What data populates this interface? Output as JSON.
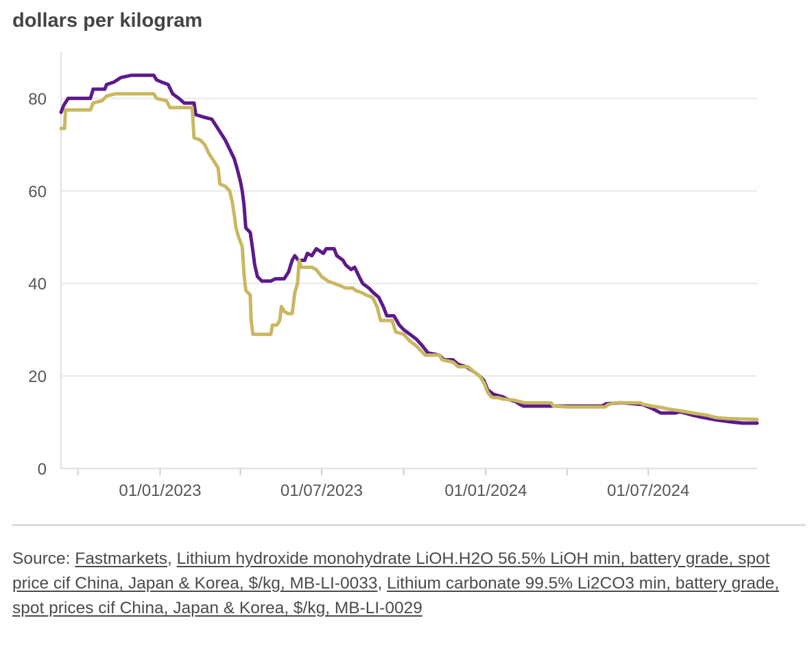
{
  "chart_data": {
    "type": "line",
    "ylabel": "dollars per kilogram",
    "ylim": [
      0,
      90
    ],
    "yticks": [
      0,
      20,
      40,
      60,
      80
    ],
    "xlim": [
      "2022-09-12",
      "2024-10-31"
    ],
    "xticks": [
      {
        "date": "2023-01-01",
        "label": "01/01/2023"
      },
      {
        "date": "2023-07-01",
        "label": "01/07/2023"
      },
      {
        "date": "2024-01-01",
        "label": "01/01/2024"
      },
      {
        "date": "2024-07-01",
        "label": "01/07/2024"
      }
    ],
    "minor_xticks": [
      "2022-10-01",
      "2023-04-01",
      "2023-10-01",
      "2024-04-01"
    ],
    "grid": true,
    "series": [
      {
        "color": "#5c1a8c",
        "points": [
          [
            "2022-09-12",
            77
          ],
          [
            "2022-09-15",
            78.5
          ],
          [
            "2022-09-20",
            80
          ],
          [
            "2022-10-15",
            80
          ],
          [
            "2022-10-18",
            82
          ],
          [
            "2022-10-31",
            82
          ],
          [
            "2022-11-02",
            83
          ],
          [
            "2022-11-10",
            83.5
          ],
          [
            "2022-11-18",
            84.5
          ],
          [
            "2022-11-30",
            85
          ],
          [
            "2022-12-25",
            85
          ],
          [
            "2022-12-28",
            84
          ],
          [
            "2023-01-03",
            83.5
          ],
          [
            "2023-01-10",
            83
          ],
          [
            "2023-01-15",
            81
          ],
          [
            "2023-01-22",
            80
          ],
          [
            "2023-01-28",
            79
          ],
          [
            "2023-02-08",
            79
          ],
          [
            "2023-02-10",
            76.5
          ],
          [
            "2023-02-18",
            76
          ],
          [
            "2023-02-28",
            75.5
          ],
          [
            "2023-03-05",
            74
          ],
          [
            "2023-03-10",
            72.5
          ],
          [
            "2023-03-15",
            71
          ],
          [
            "2023-03-20",
            69
          ],
          [
            "2023-03-25",
            67
          ],
          [
            "2023-03-28",
            65
          ],
          [
            "2023-04-01",
            62
          ],
          [
            "2023-04-03",
            60
          ],
          [
            "2023-04-05",
            57
          ],
          [
            "2023-04-07",
            52
          ],
          [
            "2023-04-12",
            51
          ],
          [
            "2023-04-15",
            47
          ],
          [
            "2023-04-17",
            44
          ],
          [
            "2023-04-20",
            41.5
          ],
          [
            "2023-04-25",
            40.5
          ],
          [
            "2023-05-05",
            40.5
          ],
          [
            "2023-05-10",
            41
          ],
          [
            "2023-05-20",
            41
          ],
          [
            "2023-05-25",
            42.5
          ],
          [
            "2023-05-29",
            45
          ],
          [
            "2023-06-01",
            46
          ],
          [
            "2023-06-05",
            45
          ],
          [
            "2023-06-12",
            45
          ],
          [
            "2023-06-15",
            46.5
          ],
          [
            "2023-06-20",
            46
          ],
          [
            "2023-06-25",
            47.5
          ],
          [
            "2023-07-03",
            46.5
          ],
          [
            "2023-07-06",
            47.5
          ],
          [
            "2023-07-15",
            47.5
          ],
          [
            "2023-07-18",
            46
          ],
          [
            "2023-07-25",
            45
          ],
          [
            "2023-07-28",
            44
          ],
          [
            "2023-08-03",
            43
          ],
          [
            "2023-08-07",
            43.5
          ],
          [
            "2023-08-12",
            41.5
          ],
          [
            "2023-08-16",
            40
          ],
          [
            "2023-08-23",
            39
          ],
          [
            "2023-08-28",
            38
          ],
          [
            "2023-09-03",
            37
          ],
          [
            "2023-09-08",
            35
          ],
          [
            "2023-09-12",
            33
          ],
          [
            "2023-09-20",
            33
          ],
          [
            "2023-09-26",
            31
          ],
          [
            "2023-10-01",
            30
          ],
          [
            "2023-10-08",
            29
          ],
          [
            "2023-10-15",
            28
          ],
          [
            "2023-10-22",
            26.5
          ],
          [
            "2023-10-28",
            25
          ],
          [
            "2023-11-10",
            24.5
          ],
          [
            "2023-11-15",
            23.5
          ],
          [
            "2023-11-25",
            23.5
          ],
          [
            "2023-12-01",
            22.5
          ],
          [
            "2023-12-10",
            22
          ],
          [
            "2023-12-18",
            21
          ],
          [
            "2023-12-25",
            20
          ],
          [
            "2023-12-30",
            19
          ],
          [
            "2024-01-01",
            18
          ],
          [
            "2024-01-03",
            17
          ],
          [
            "2024-01-10",
            16
          ],
          [
            "2024-01-20",
            15.5
          ],
          [
            "2024-01-25",
            15
          ],
          [
            "2024-02-03",
            14.5
          ],
          [
            "2024-02-07",
            14
          ],
          [
            "2024-02-12",
            13.5
          ],
          [
            "2024-03-14",
            13.5
          ],
          [
            "2024-03-20",
            13.5
          ],
          [
            "2024-04-01",
            13.5
          ],
          [
            "2024-05-10",
            13.5
          ],
          [
            "2024-05-15",
            14
          ],
          [
            "2024-06-01",
            14.2
          ],
          [
            "2024-06-15",
            14
          ],
          [
            "2024-06-25",
            13.8
          ],
          [
            "2024-07-05",
            13
          ],
          [
            "2024-07-10",
            12.5
          ],
          [
            "2024-07-15",
            12
          ],
          [
            "2024-08-01",
            12
          ],
          [
            "2024-08-05",
            12.3
          ],
          [
            "2024-08-20",
            11.5
          ],
          [
            "2024-09-01",
            11
          ],
          [
            "2024-09-15",
            10.5
          ],
          [
            "2024-10-05",
            10
          ],
          [
            "2024-10-15",
            9.8
          ],
          [
            "2024-10-31",
            9.8
          ]
        ]
      },
      {
        "color": "#c9b861",
        "points": [
          [
            "2022-09-12",
            73.5
          ],
          [
            "2022-09-16",
            73.5
          ],
          [
            "2022-09-17",
            77.5
          ],
          [
            "2022-10-15",
            77.5
          ],
          [
            "2022-10-18",
            79
          ],
          [
            "2022-10-28",
            79.5
          ],
          [
            "2022-11-02",
            80.5
          ],
          [
            "2022-11-12",
            81
          ],
          [
            "2022-12-25",
            81
          ],
          [
            "2022-12-28",
            80
          ],
          [
            "2023-01-08",
            79.5
          ],
          [
            "2023-01-12",
            78
          ],
          [
            "2023-02-06",
            78
          ],
          [
            "2023-02-08",
            71.5
          ],
          [
            "2023-02-15",
            71
          ],
          [
            "2023-02-20",
            70
          ],
          [
            "2023-02-25",
            68
          ],
          [
            "2023-03-02",
            66.5
          ],
          [
            "2023-03-07",
            65
          ],
          [
            "2023-03-09",
            61.5
          ],
          [
            "2023-03-15",
            61
          ],
          [
            "2023-03-20",
            60
          ],
          [
            "2023-03-23",
            57.5
          ],
          [
            "2023-03-25",
            55
          ],
          [
            "2023-03-27",
            52
          ],
          [
            "2023-03-30",
            50
          ],
          [
            "2023-04-03",
            48
          ],
          [
            "2023-04-04",
            45
          ],
          [
            "2023-04-05",
            42
          ],
          [
            "2023-04-07",
            38.5
          ],
          [
            "2023-04-12",
            37.5
          ],
          [
            "2023-04-13",
            32
          ],
          [
            "2023-04-15",
            29
          ],
          [
            "2023-05-05",
            29
          ],
          [
            "2023-05-07",
            31
          ],
          [
            "2023-05-12",
            31
          ],
          [
            "2023-05-15",
            32
          ],
          [
            "2023-05-17",
            35
          ],
          [
            "2023-05-20",
            34
          ],
          [
            "2023-05-24",
            33.5
          ],
          [
            "2023-05-29",
            33.5
          ],
          [
            "2023-06-01",
            38
          ],
          [
            "2023-06-04",
            40
          ],
          [
            "2023-06-06",
            45
          ],
          [
            "2023-06-08",
            43.5
          ],
          [
            "2023-06-20",
            43.5
          ],
          [
            "2023-06-25",
            43
          ],
          [
            "2023-07-01",
            41.5
          ],
          [
            "2023-07-08",
            40.5
          ],
          [
            "2023-07-15",
            40
          ],
          [
            "2023-07-22",
            39.5
          ],
          [
            "2023-07-28",
            39
          ],
          [
            "2023-08-05",
            39
          ],
          [
            "2023-08-08",
            38.5
          ],
          [
            "2023-08-15",
            38
          ],
          [
            "2023-08-20",
            37.5
          ],
          [
            "2023-08-27",
            37
          ],
          [
            "2023-09-01",
            35
          ],
          [
            "2023-09-05",
            32
          ],
          [
            "2023-09-18",
            32
          ],
          [
            "2023-09-22",
            29.5
          ],
          [
            "2023-10-01",
            29
          ],
          [
            "2023-10-08",
            27.5
          ],
          [
            "2023-10-15",
            26.5
          ],
          [
            "2023-10-20",
            25.5
          ],
          [
            "2023-10-25",
            24.5
          ],
          [
            "2023-11-10",
            24.5
          ],
          [
            "2023-11-13",
            23.5
          ],
          [
            "2023-11-25",
            23
          ],
          [
            "2023-12-01",
            22
          ],
          [
            "2023-12-12",
            22
          ],
          [
            "2023-12-18",
            21
          ],
          [
            "2023-12-25",
            20
          ],
          [
            "2023-12-30",
            18.5
          ],
          [
            "2024-01-01",
            17.5
          ],
          [
            "2024-01-03",
            16.5
          ],
          [
            "2024-01-07",
            15.5
          ],
          [
            "2024-01-10",
            15.3
          ],
          [
            "2024-01-15",
            15.3
          ],
          [
            "2024-01-20",
            15
          ],
          [
            "2024-02-01",
            14.8
          ],
          [
            "2024-02-07",
            14.5
          ],
          [
            "2024-02-13",
            14.2
          ],
          [
            "2024-03-14",
            14.2
          ],
          [
            "2024-03-17",
            13.5
          ],
          [
            "2024-04-01",
            13.3
          ],
          [
            "2024-05-14",
            13.3
          ],
          [
            "2024-05-17",
            13.8
          ],
          [
            "2024-05-25",
            14.2
          ],
          [
            "2024-06-22",
            14.2
          ],
          [
            "2024-06-25",
            13.9
          ],
          [
            "2024-07-05",
            13.5
          ],
          [
            "2024-07-15",
            13.2
          ],
          [
            "2024-07-25",
            12.8
          ],
          [
            "2024-08-05",
            12.5
          ],
          [
            "2024-08-20",
            12
          ],
          [
            "2024-09-05",
            11.5
          ],
          [
            "2024-09-15",
            11
          ],
          [
            "2024-09-28",
            10.8
          ],
          [
            "2024-10-31",
            10.6
          ]
        ]
      }
    ]
  },
  "source": {
    "prefix": "Source: ",
    "links": [
      {
        "text": "Fastmarkets"
      },
      {
        "text": "Lithium hydroxide monohydrate LiOH.H2O 56.5% LiOH min, battery grade, spot price cif China, Japan & Korea, $/kg, MB-LI-0033"
      },
      {
        "text": "Lithium carbonate 99.5% Li2CO3 min, battery grade, spot prices cif China, Japan & Korea, $/kg, MB-LI-0029"
      }
    ]
  }
}
